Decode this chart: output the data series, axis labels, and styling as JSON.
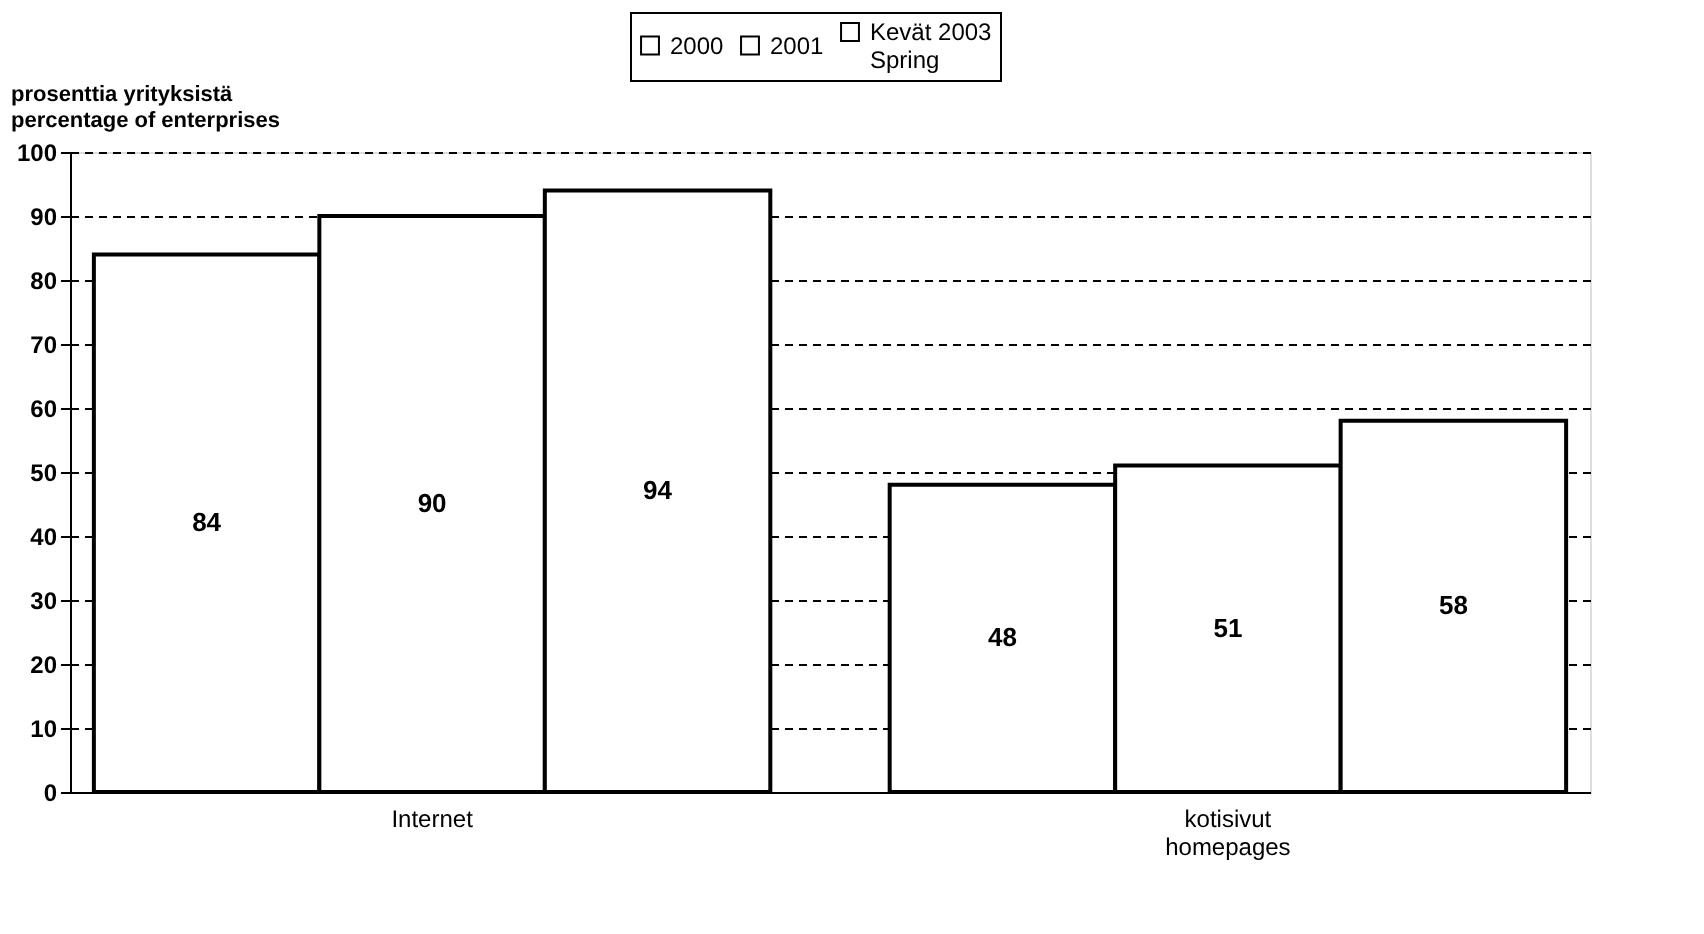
{
  "chart_data": {
    "type": "bar",
    "ylabel": "prosenttia yrityksistä\npercentage of enterprises",
    "categories": [
      "Internet",
      "kotisivut\nhomepages"
    ],
    "series": [
      {
        "name": "2000",
        "color": "#ffffff",
        "values": [
          84,
          48
        ]
      },
      {
        "name": "2001",
        "color": "#ffffff",
        "values": [
          90,
          51
        ]
      },
      {
        "name": "Kevät 2003\nSpring",
        "color": "#ffffff",
        "values": [
          94,
          58
        ]
      }
    ],
    "ylim": [
      0,
      100
    ],
    "yticks": [
      0,
      10,
      20,
      30,
      40,
      50,
      60,
      70,
      80,
      90,
      100
    ],
    "grid": "y",
    "legend": "top",
    "data_labels": true
  }
}
